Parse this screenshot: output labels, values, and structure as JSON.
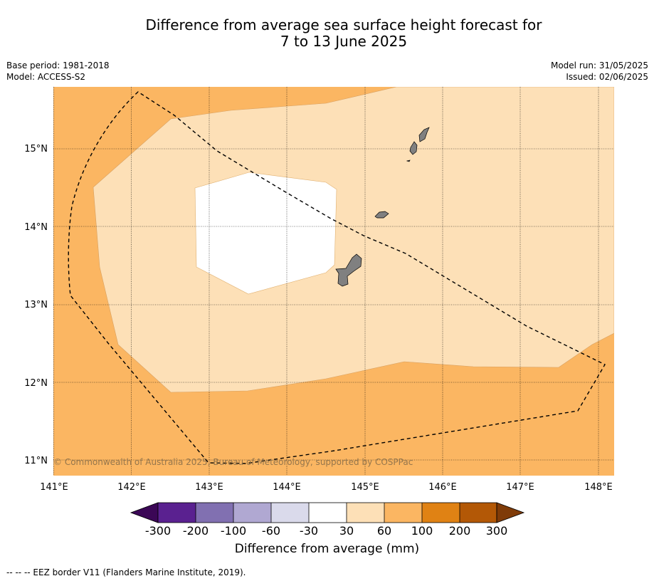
{
  "title_line1": "Difference from average sea surface height forecast for",
  "title_line2": "7 to 13 June 2025",
  "base_period": "Base period: 1981-2018",
  "model": "Model: ACCESS-S2",
  "model_run": "Model run: 31/05/2025",
  "issued": "Issued: 02/06/2025",
  "copyright": "© Commonwealth of Australia 2025, Bureau of Meteorology, supported by COSPPac",
  "lat_labels": [
    "15°N",
    "14°N",
    "13°N",
    "12°N",
    "11°N"
  ],
  "lon_labels": [
    "141°E",
    "142°E",
    "143°E",
    "144°E",
    "145°E",
    "146°E",
    "147°E",
    "148°E"
  ],
  "colorbar": {
    "title": "Difference from average (mm)",
    "tick_labels": [
      "-300",
      "-200",
      "-100",
      "-60",
      "-30",
      "30",
      "60",
      "100",
      "200",
      "300"
    ],
    "colors": [
      "#3b0756",
      "#5a2190",
      "#8170b1",
      "#b0a8d2",
      "#dadaeb",
      "#ffffff",
      "#fde0b7",
      "#fbb662",
      "#e08214",
      "#b35806",
      "#7f3b08"
    ]
  },
  "colors": {
    "land": "#808080",
    "band_30_60": "#fde0b7",
    "band_60_100": "#fbb662",
    "band_neutral": "#ffffff"
  },
  "footer": "--  --  -- EEZ border V11 (Flanders Marine Institute, 2019)."
}
